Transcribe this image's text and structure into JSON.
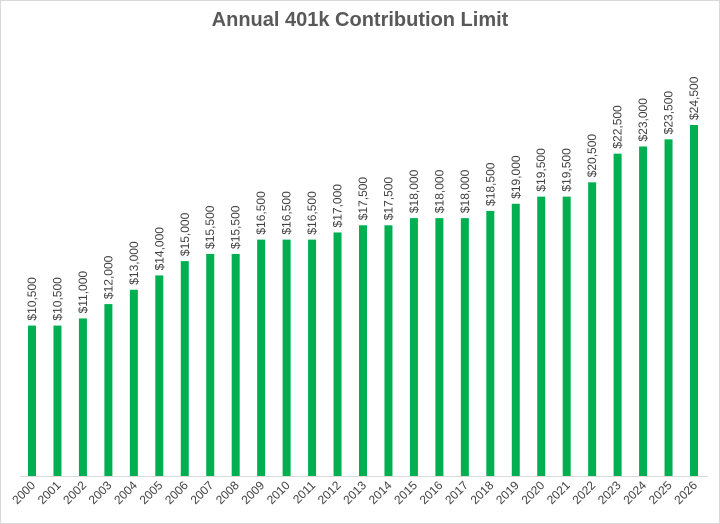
{
  "chart_data": {
    "type": "bar",
    "title": "Annual 401k Contribution Limit",
    "xlabel": "",
    "ylabel": "",
    "categories": [
      "2000",
      "2001",
      "2002",
      "2003",
      "2004",
      "2005",
      "2006",
      "2007",
      "2008",
      "2009",
      "2010",
      "2011",
      "2012",
      "2013",
      "2014",
      "2015",
      "2016",
      "2017",
      "2018",
      "2019",
      "2020",
      "2021",
      "2022",
      "2023",
      "2024",
      "2025",
      "2026"
    ],
    "values": [
      10500,
      10500,
      11000,
      12000,
      13000,
      14000,
      15000,
      15500,
      15500,
      16500,
      16500,
      16500,
      17000,
      17500,
      17500,
      18000,
      18000,
      18000,
      18500,
      19000,
      19500,
      19500,
      20500,
      22500,
      23000,
      23500,
      24500
    ],
    "data_labels": [
      "$10,500",
      "$10,500",
      "$11,000",
      "$12,000",
      "$13,000",
      "$14,000",
      "$15,000",
      "$15,500",
      "$15,500",
      "$16,500",
      "$16,500",
      "$16,500",
      "$17,000",
      "$17,500",
      "$17,500",
      "$18,000",
      "$18,000",
      "$18,000",
      "$18,500",
      "$19,000",
      "$19,500",
      "$19,500",
      "$20,500",
      "$22,500",
      "$23,000",
      "$23,500",
      "$24,500"
    ],
    "ylim": [
      0,
      24500
    ],
    "grid": false,
    "legend": "none",
    "bar_color": "#00B050"
  }
}
